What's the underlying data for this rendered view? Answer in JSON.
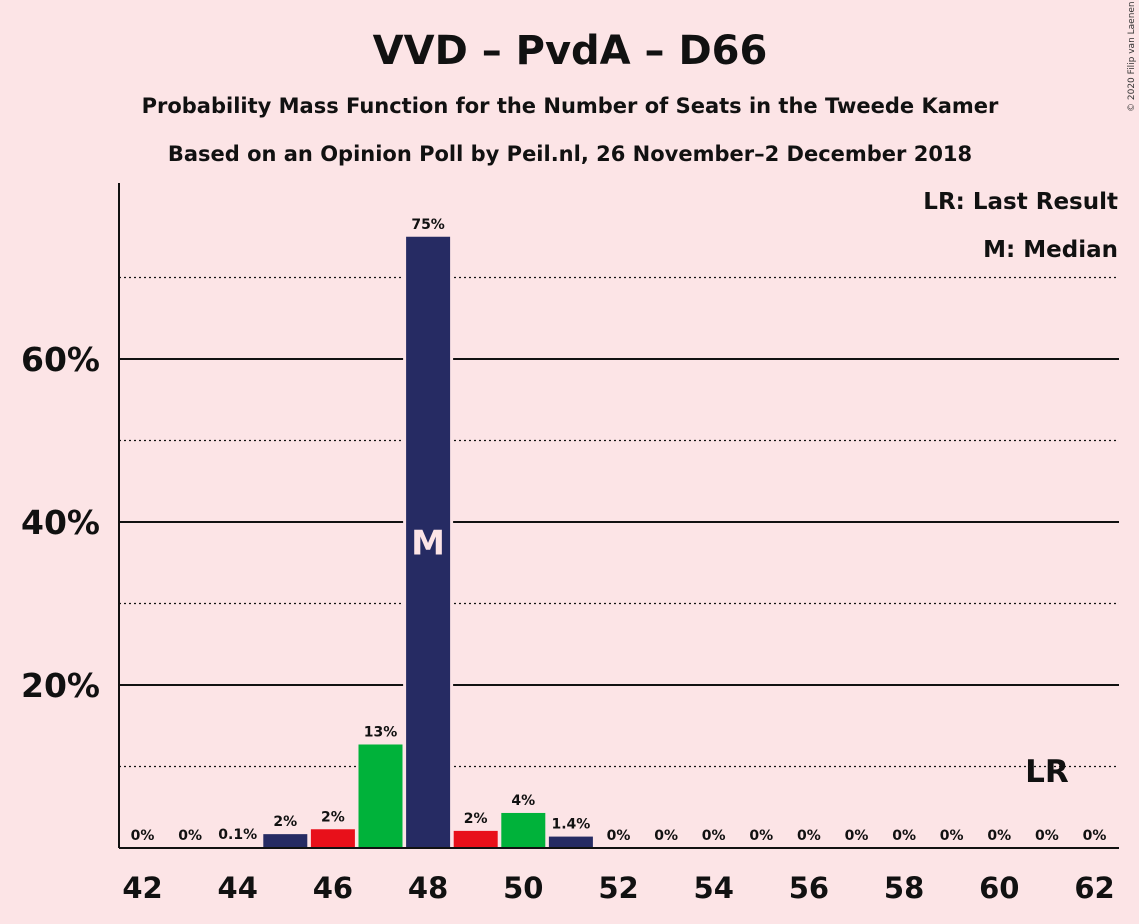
{
  "chart_data": {
    "type": "bar",
    "title": "VVD – PvdA – D66",
    "subtitle_1": "Probability Mass Function for the Number of Seats in the Tweede Kamer",
    "subtitle_2": "Based on an Opinion Poll by Peil.nl, 26 November–2 December 2018",
    "copyright": "© 2020 Filip van Laenen",
    "legend": [
      "LR: Last Result",
      "M: Median"
    ],
    "legend_placement": "top-right",
    "xlabel": "",
    "ylabel": "",
    "ylim": [
      0,
      80
    ],
    "yticks": [
      {
        "value": 20,
        "label": "20%"
      },
      {
        "value": 40,
        "label": "40%"
      },
      {
        "value": 60,
        "label": "60%"
      }
    ],
    "grid_dotted_values": [
      10,
      30,
      50,
      70
    ],
    "xticks": [
      "42",
      "44",
      "46",
      "48",
      "50",
      "52",
      "54",
      "56",
      "58",
      "60",
      "62"
    ],
    "colors": {
      "blue": "#262b63",
      "red": "#e8101a",
      "green": "#00b23a"
    },
    "median_seat": 48,
    "median_marker": "M",
    "last_result_seat": 61,
    "last_result_marker": "LR",
    "bars": [
      {
        "x": 42,
        "value": 0,
        "label": "0%",
        "color": "blue"
      },
      {
        "x": 43,
        "value": 0,
        "label": "0%",
        "color": "blue"
      },
      {
        "x": 44,
        "value": 0.1,
        "label": "0.1%",
        "color": "blue"
      },
      {
        "x": 45,
        "value": 1.7,
        "label": "2%",
        "color": "blue"
      },
      {
        "x": 46,
        "value": 2.3,
        "label": "2%",
        "color": "red"
      },
      {
        "x": 47,
        "value": 12.7,
        "label": "13%",
        "color": "green"
      },
      {
        "x": 48,
        "value": 75,
        "label": "75%",
        "color": "blue"
      },
      {
        "x": 49,
        "value": 2.1,
        "label": "2%",
        "color": "red"
      },
      {
        "x": 50,
        "value": 4.3,
        "label": "4%",
        "color": "green"
      },
      {
        "x": 51,
        "value": 1.4,
        "label": "1.4%",
        "color": "blue"
      },
      {
        "x": 52,
        "value": 0,
        "label": "0%",
        "color": "blue"
      },
      {
        "x": 53,
        "value": 0,
        "label": "0%",
        "color": "blue"
      },
      {
        "x": 54,
        "value": 0,
        "label": "0%",
        "color": "blue"
      },
      {
        "x": 55,
        "value": 0,
        "label": "0%",
        "color": "blue"
      },
      {
        "x": 56,
        "value": 0,
        "label": "0%",
        "color": "blue"
      },
      {
        "x": 57,
        "value": 0,
        "label": "0%",
        "color": "blue"
      },
      {
        "x": 58,
        "value": 0,
        "label": "0%",
        "color": "blue"
      },
      {
        "x": 59,
        "value": 0,
        "label": "0%",
        "color": "blue"
      },
      {
        "x": 60,
        "value": 0,
        "label": "0%",
        "color": "blue"
      },
      {
        "x": 61,
        "value": 0,
        "label": "0%",
        "color": "blue"
      },
      {
        "x": 62,
        "value": 0,
        "label": "0%",
        "color": "blue"
      }
    ]
  }
}
